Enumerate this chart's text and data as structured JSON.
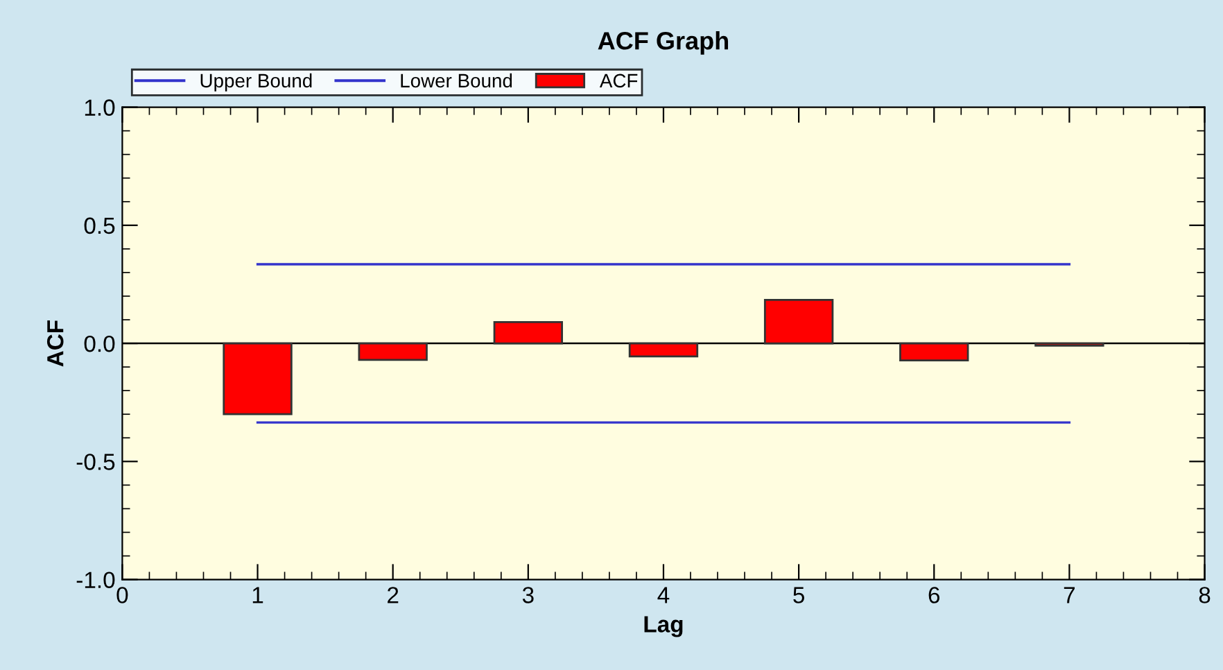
{
  "chart_data": {
    "type": "bar",
    "title": "ACF Graph",
    "xlabel": "Lag",
    "ylabel": "ACF",
    "x": [
      1,
      2,
      3,
      4,
      5,
      6,
      7
    ],
    "series": [
      {
        "name": "Upper Bound",
        "type": "line",
        "color": "#3333cc",
        "values": [
          0.335,
          0.335,
          0.335,
          0.335,
          0.335,
          0.335,
          0.335
        ]
      },
      {
        "name": "Lower Bound",
        "type": "line",
        "color": "#3333cc",
        "values": [
          -0.335,
          -0.335,
          -0.335,
          -0.335,
          -0.335,
          -0.335,
          -0.335
        ]
      },
      {
        "name": "ACF",
        "color": "#ff0000",
        "values": [
          -0.3,
          -0.07,
          0.09,
          -0.055,
          0.184,
          -0.072,
          -0.01
        ]
      }
    ],
    "ref_lines": [
      {
        "axis": "y",
        "value": 0,
        "color": "#000000"
      }
    ],
    "xlim": [
      0,
      8
    ],
    "xticks": [
      0,
      1,
      2,
      3,
      4,
      5,
      6,
      7,
      8
    ],
    "ylim": [
      -1.0,
      1.0
    ],
    "yticks": [
      {
        "value": -1.0,
        "label": "-1.0"
      },
      {
        "value": -0.5,
        "label": "-0.5"
      },
      {
        "value": 0.0,
        "label": "0.0"
      },
      {
        "value": 0.5,
        "label": "0.5"
      },
      {
        "value": 1.0,
        "label": "1.0"
      }
    ],
    "grid": false,
    "legend": "top"
  }
}
